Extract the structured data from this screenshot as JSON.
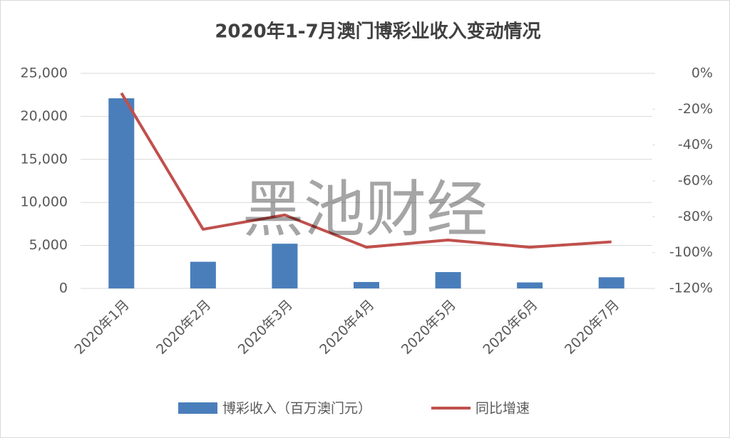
{
  "chart_data": {
    "type": "bar",
    "title": "2020年1-7月澳门博彩业收入变动情况",
    "watermark": "黑池财经",
    "categories": [
      "2020年1月",
      "2020年2月",
      "2020年3月",
      "2020年4月",
      "2020年5月",
      "2020年6月",
      "2020年7月"
    ],
    "series": [
      {
        "name": "博彩收入（百万澳门元）",
        "type": "bar",
        "color": "#4a7ebb",
        "values": [
          22100,
          3100,
          5200,
          750,
          1900,
          700,
          1300
        ]
      },
      {
        "name": "同比增速",
        "type": "line",
        "axis": "y2",
        "color": "#c0504d",
        "values": [
          -11,
          -87,
          -79,
          -97,
          -93,
          -97,
          -94
        ]
      }
    ],
    "ylim": [
      0,
      25000
    ],
    "yticks": [
      0,
      {
        "value": 5000,
        "label": "5,000"
      },
      {
        "value": 10000,
        "label": "10,000"
      },
      {
        "value": 15000,
        "label": "15,000"
      },
      {
        "value": 20000,
        "label": "20,000"
      },
      {
        "value": 25000,
        "label": "25,000"
      }
    ],
    "y2lim": [
      -120,
      0
    ],
    "y2ticks": [
      {
        "value": -120,
        "label": "-120%"
      },
      {
        "value": -100,
        "label": "-100%"
      },
      {
        "value": -80,
        "label": "-80%"
      },
      {
        "value": -60,
        "label": "-60%"
      },
      {
        "value": -40,
        "label": "-40%"
      },
      {
        "value": -20,
        "label": "-20%"
      },
      {
        "value": 0,
        "label": "0%"
      }
    ],
    "grid": true,
    "legend": "bottom"
  }
}
